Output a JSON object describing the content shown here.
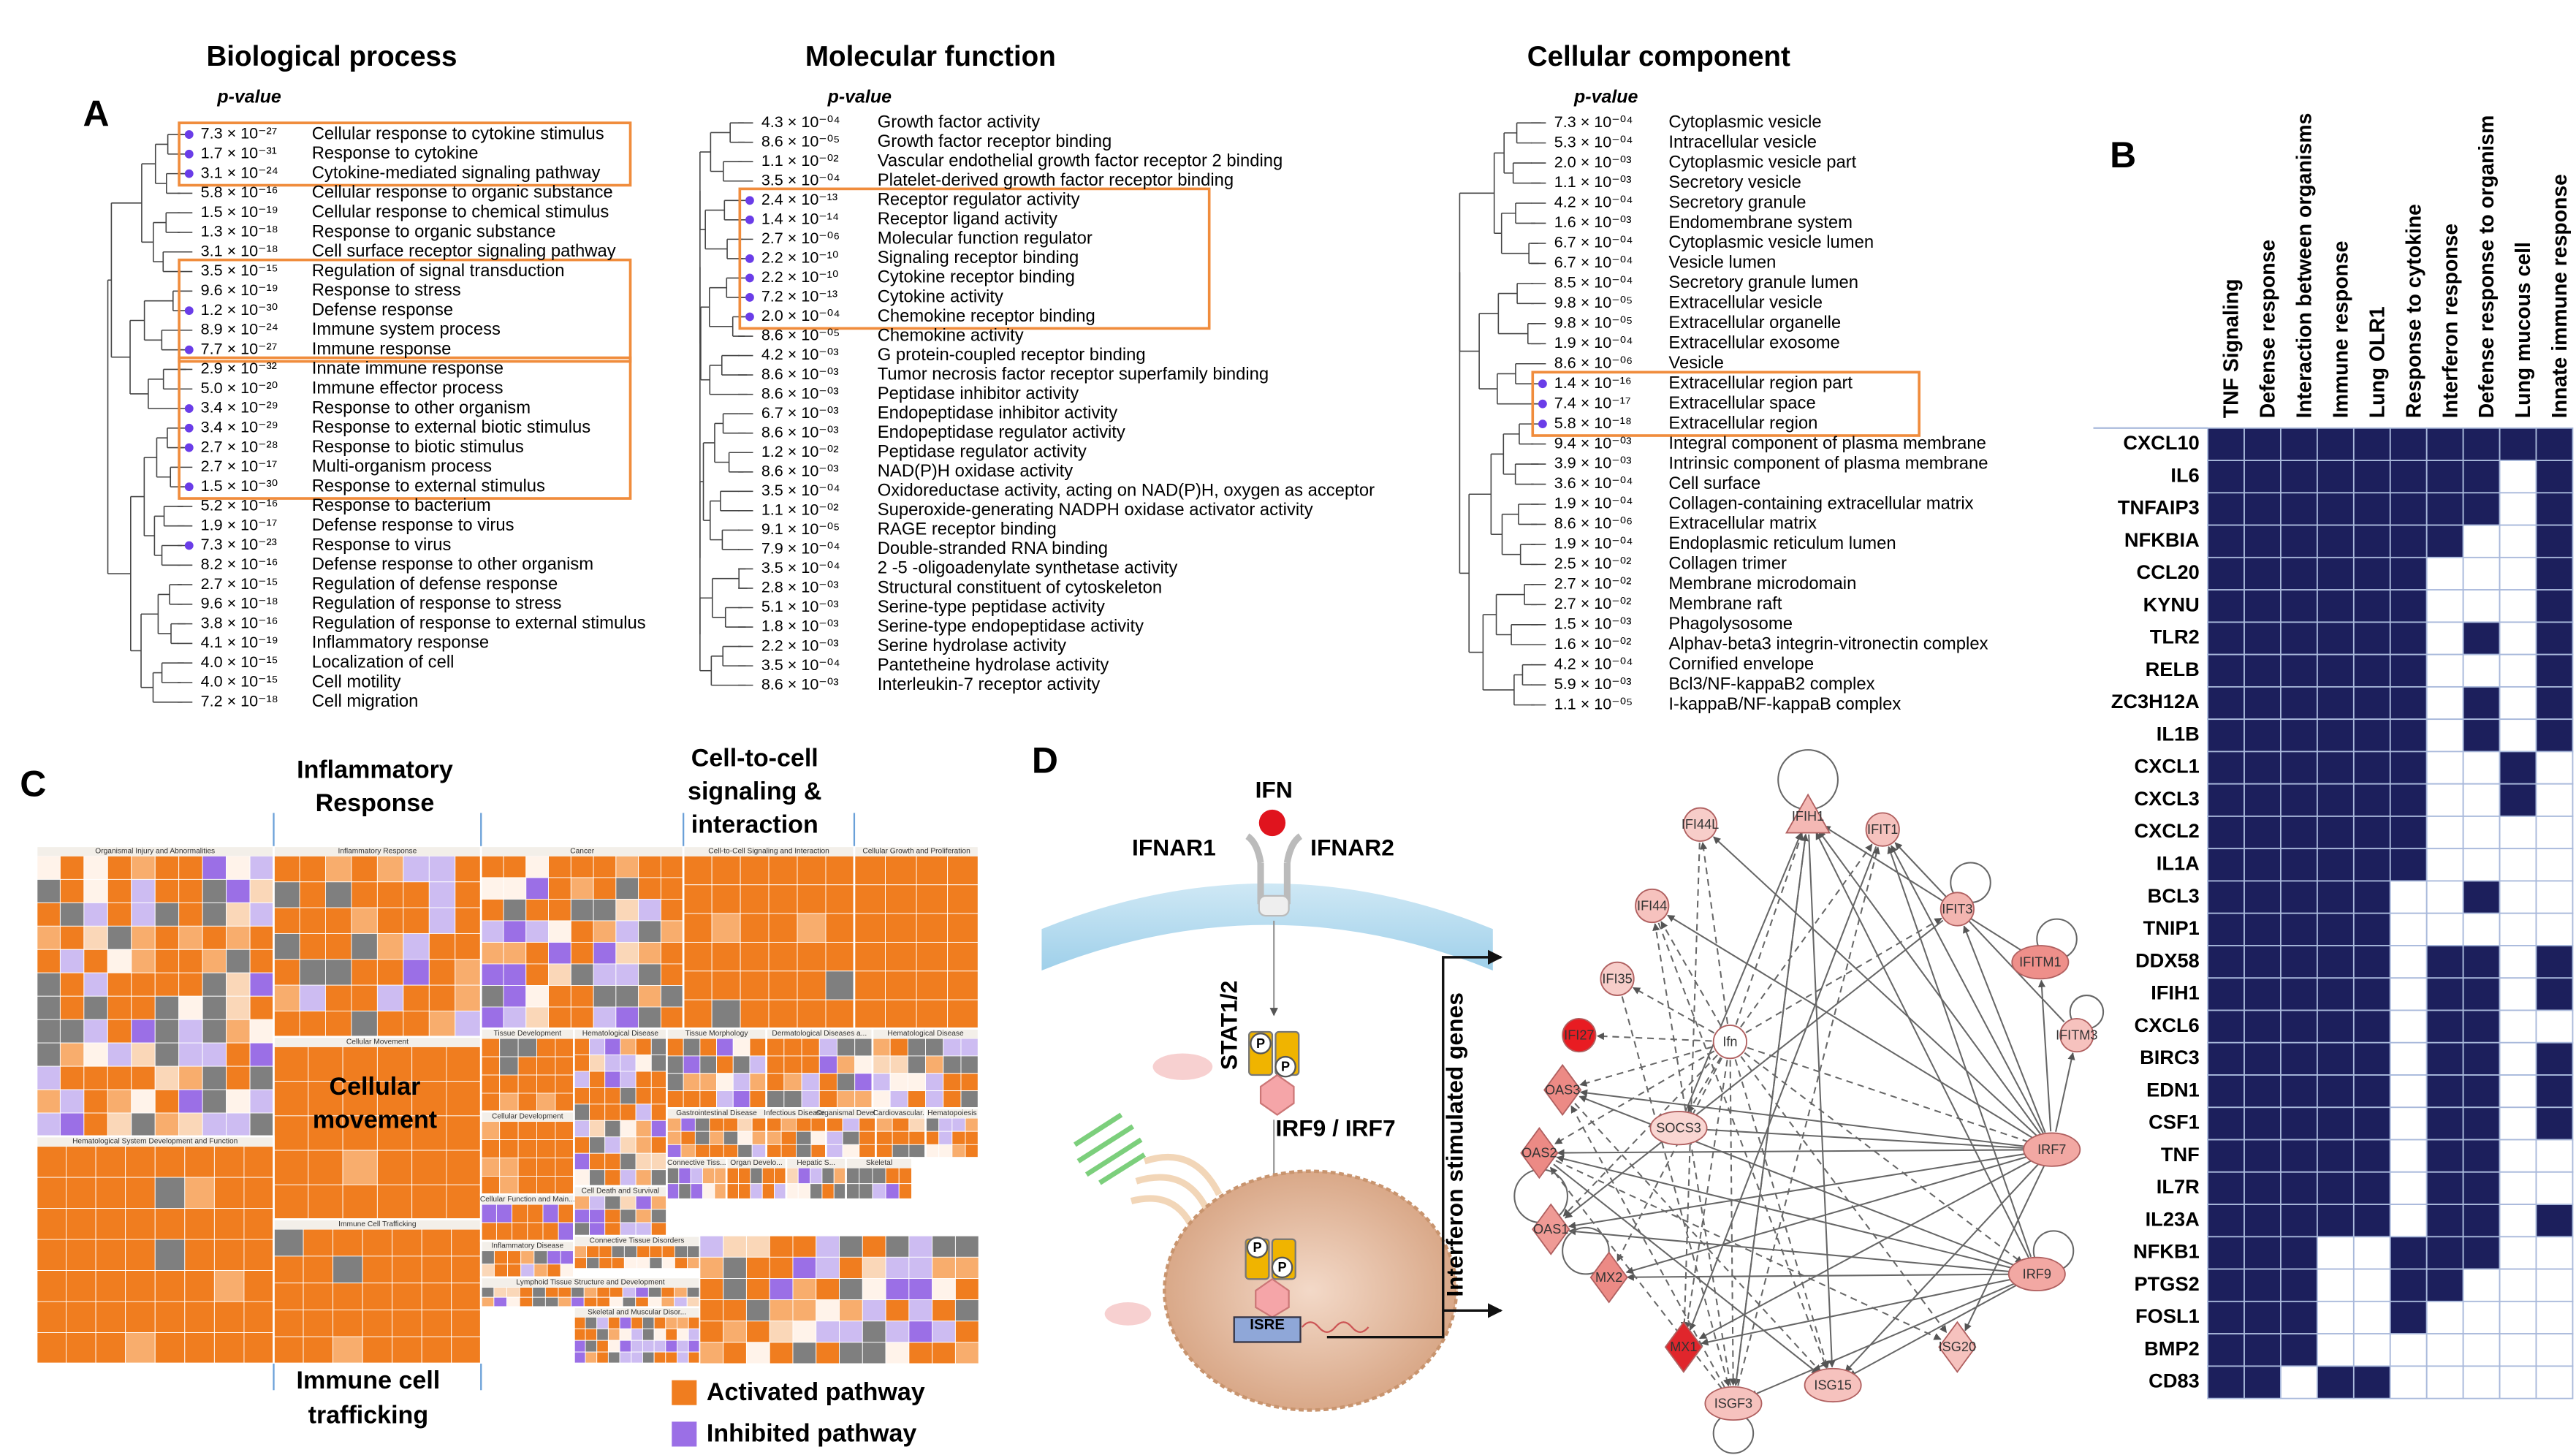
{
  "panel_a": {
    "label": "A",
    "ontologies": [
      {
        "title": "Biological process",
        "header": "p-value",
        "terms": [
          {
            "p": "7.3 × 10⁻²⁷",
            "name": "Cellular response to cytokine stimulus"
          },
          {
            "p": "1.7 × 10⁻³¹",
            "name": "Response to cytokine"
          },
          {
            "p": "3.1 × 10⁻²⁴",
            "name": "Cytokine-mediated signaling pathway"
          },
          {
            "p": "5.8 × 10⁻¹⁶",
            "name": "Cellular response to organic substance"
          },
          {
            "p": "1.5 × 10⁻¹⁹",
            "name": "Cellular response to chemical stimulus"
          },
          {
            "p": "1.3 × 10⁻¹⁸",
            "name": "Response to organic substance"
          },
          {
            "p": "3.1 × 10⁻¹⁸",
            "name": "Cell surface receptor signaling pathway"
          },
          {
            "p": "3.5 × 10⁻¹⁵",
            "name": "Regulation of signal transduction"
          },
          {
            "p": "9.6 × 10⁻¹⁹",
            "name": "Response to stress"
          },
          {
            "p": "1.2 × 10⁻³⁰",
            "name": "Defense response"
          },
          {
            "p": "8.9 × 10⁻²⁴",
            "name": "Immune system process"
          },
          {
            "p": "7.7 × 10⁻²⁷",
            "name": "Immune response"
          },
          {
            "p": "2.9 × 10⁻³²",
            "name": "Innate immune response"
          },
          {
            "p": "5.0 × 10⁻²⁰",
            "name": "Immune effector process"
          },
          {
            "p": "3.4 × 10⁻²⁹",
            "name": "Response to other organism"
          },
          {
            "p": "3.4 × 10⁻²⁹",
            "name": "Response to external biotic stimulus"
          },
          {
            "p": "2.7 × 10⁻²⁸",
            "name": "Response to biotic stimulus"
          },
          {
            "p": "2.7 × 10⁻¹⁷",
            "name": "Multi-organism process"
          },
          {
            "p": "1.5 × 10⁻³⁰",
            "name": "Response to external stimulus"
          },
          {
            "p": "5.2 × 10⁻¹⁶",
            "name": "Response to bacterium"
          },
          {
            "p": "1.9 × 10⁻¹⁷",
            "name": "Defense response to virus"
          },
          {
            "p": "7.3 × 10⁻²³",
            "name": "Response to virus"
          },
          {
            "p": "8.2 × 10⁻¹⁶",
            "name": "Defense response to other organism"
          },
          {
            "p": "2.7 × 10⁻¹⁵",
            "name": "Regulation of defense response"
          },
          {
            "p": "9.6 × 10⁻¹⁸",
            "name": "Regulation of response to stress"
          },
          {
            "p": "3.8 × 10⁻¹⁶",
            "name": "Regulation of response to external stimulus"
          },
          {
            "p": "4.1 × 10⁻¹⁹",
            "name": "Inflammatory response"
          },
          {
            "p": "4.0 × 10⁻¹⁵",
            "name": "Localization of cell"
          },
          {
            "p": "4.0 × 10⁻¹⁵",
            "name": "Cell motility"
          },
          {
            "p": "7.2 × 10⁻¹⁸",
            "name": "Cell migration"
          }
        ]
      },
      {
        "title": "Molecular function",
        "header": "p-value",
        "terms": [
          {
            "p": "4.3 × 10⁻⁰⁴",
            "name": "Growth factor activity"
          },
          {
            "p": "8.6 × 10⁻⁰⁵",
            "name": "Growth factor receptor binding"
          },
          {
            "p": "1.1 × 10⁻⁰²",
            "name": "Vascular endothelial growth factor receptor 2 binding"
          },
          {
            "p": "3.5 × 10⁻⁰⁴",
            "name": "Platelet-derived growth factor receptor binding"
          },
          {
            "p": "2.4 × 10⁻¹³",
            "name": "Receptor regulator activity"
          },
          {
            "p": "1.4 × 10⁻¹⁴",
            "name": "Receptor ligand activity"
          },
          {
            "p": "2.7 × 10⁻⁰⁶",
            "name": "Molecular function regulator"
          },
          {
            "p": "2.2 × 10⁻¹⁰",
            "name": "Signaling receptor binding"
          },
          {
            "p": "2.2 × 10⁻¹⁰",
            "name": "Cytokine receptor binding"
          },
          {
            "p": "7.2 × 10⁻¹³",
            "name": "Cytokine activity"
          },
          {
            "p": "2.0 × 10⁻⁰⁴",
            "name": "Chemokine receptor binding"
          },
          {
            "p": "8.6 × 10⁻⁰⁵",
            "name": "Chemokine activity"
          },
          {
            "p": "4.2 × 10⁻⁰³",
            "name": "G protein-coupled receptor binding"
          },
          {
            "p": "8.6 × 10⁻⁰³",
            "name": "Tumor necrosis factor receptor superfamily binding"
          },
          {
            "p": "8.6 × 10⁻⁰³",
            "name": "Peptidase inhibitor activity"
          },
          {
            "p": "6.7 × 10⁻⁰³",
            "name": "Endopeptidase inhibitor activity"
          },
          {
            "p": "8.6 × 10⁻⁰³",
            "name": "Endopeptidase regulator activity"
          },
          {
            "p": "1.2 × 10⁻⁰²",
            "name": "Peptidase regulator activity"
          },
          {
            "p": "8.6 × 10⁻⁰³",
            "name": "NAD(P)H oxidase activity"
          },
          {
            "p": "3.5 × 10⁻⁰⁴",
            "name": "Oxidoreductase activity, acting on NAD(P)H, oxygen as acceptor"
          },
          {
            "p": "1.1 × 10⁻⁰²",
            "name": "Superoxide-generating NADPH oxidase activator activity"
          },
          {
            "p": "9.1 × 10⁻⁰⁵",
            "name": "RAGE receptor binding"
          },
          {
            "p": "7.9 × 10⁻⁰⁴",
            "name": "Double-stranded RNA binding"
          },
          {
            "p": "3.5 × 10⁻⁰⁴",
            "name": "2 -5 -oligoadenylate synthetase activity"
          },
          {
            "p": "2.8 × 10⁻⁰³",
            "name": "Structural constituent of cytoskeleton"
          },
          {
            "p": "5.1 × 10⁻⁰³",
            "name": "Serine-type peptidase activity"
          },
          {
            "p": "1.8 × 10⁻⁰³",
            "name": "Serine-type endopeptidase activity"
          },
          {
            "p": "2.2 × 10⁻⁰³",
            "name": "Serine hydrolase activity"
          },
          {
            "p": "3.5 × 10⁻⁰⁴",
            "name": "Pantetheine hydrolase activity"
          },
          {
            "p": "8.6 × 10⁻⁰³",
            "name": "Interleukin-7 receptor activity"
          }
        ]
      },
      {
        "title": "Cellular component",
        "header": "p-value",
        "terms": [
          {
            "p": "7.3 × 10⁻⁰⁴",
            "name": "Cytoplasmic vesicle"
          },
          {
            "p": "5.3 × 10⁻⁰⁴",
            "name": "Intracellular vesicle"
          },
          {
            "p": "2.0 × 10⁻⁰³",
            "name": "Cytoplasmic vesicle part"
          },
          {
            "p": "1.1 × 10⁻⁰³",
            "name": "Secretory vesicle"
          },
          {
            "p": "4.2 × 10⁻⁰⁴",
            "name": "Secretory granule"
          },
          {
            "p": "1.6 × 10⁻⁰³",
            "name": "Endomembrane system"
          },
          {
            "p": "6.7 × 10⁻⁰⁴",
            "name": "Cytoplasmic vesicle lumen"
          },
          {
            "p": "6.7 × 10⁻⁰⁴",
            "name": "Vesicle lumen"
          },
          {
            "p": "8.5 × 10⁻⁰⁴",
            "name": "Secretory granule lumen"
          },
          {
            "p": "9.8 × 10⁻⁰⁵",
            "name": "Extracellular vesicle"
          },
          {
            "p": "9.8 × 10⁻⁰⁵",
            "name": "Extracellular organelle"
          },
          {
            "p": "1.9 × 10⁻⁰⁴",
            "name": "Extracellular exosome"
          },
          {
            "p": "8.6 × 10⁻⁰⁶",
            "name": "Vesicle"
          },
          {
            "p": "1.4 × 10⁻¹⁶",
            "name": "Extracellular region part"
          },
          {
            "p": "7.4 × 10⁻¹⁷",
            "name": "Extracellular space"
          },
          {
            "p": "5.8 × 10⁻¹⁸",
            "name": "Extracellular region"
          },
          {
            "p": "9.4 × 10⁻⁰³",
            "name": "Integral component of plasma membrane"
          },
          {
            "p": "3.9 × 10⁻⁰³",
            "name": "Intrinsic component of plasma membrane"
          },
          {
            "p": "3.6 × 10⁻⁰⁴",
            "name": "Cell surface"
          },
          {
            "p": "1.9 × 10⁻⁰⁴",
            "name": "Collagen-containing extracellular matrix"
          },
          {
            "p": "8.6 × 10⁻⁰⁶",
            "name": "Extracellular matrix"
          },
          {
            "p": "1.9 × 10⁻⁰⁴",
            "name": "Endoplasmic reticulum lumen"
          },
          {
            "p": "2.5 × 10⁻⁰²",
            "name": "Collagen trimer"
          },
          {
            "p": "2.7 × 10⁻⁰²",
            "name": "Membrane microdomain"
          },
          {
            "p": "2.7 × 10⁻⁰²",
            "name": "Membrane raft"
          },
          {
            "p": "1.5 × 10⁻⁰³",
            "name": "Phagolysosome"
          },
          {
            "p": "1.6 × 10⁻⁰²",
            "name": "Alphav-beta3 integrin-vitronectin complex"
          },
          {
            "p": "4.2 × 10⁻⁰⁴",
            "name": "Cornified envelope"
          },
          {
            "p": "5.9 × 10⁻⁰³",
            "name": "Bcl3/NF-kappaB2 complex"
          },
          {
            "p": "1.1 × 10⁻⁰⁵",
            "name": "I-kappaB/NF-kappaB complex"
          }
        ]
      }
    ]
  },
  "panel_b": {
    "label": "B",
    "columns": [
      "TNF Signaling",
      "Defense response",
      "Interaction between organisms",
      "Immune response",
      "Lung OLR1",
      "Response to cytokine",
      "Interferon response",
      "Defense response to organism",
      "Lung mucous cell",
      "Innate immune response"
    ],
    "genes": [
      "CXCL10",
      "IL6",
      "TNFAIP3",
      "NFKBIA",
      "CCL20",
      "KYNU",
      "TLR2",
      "RELB",
      "ZC3H12A",
      "IL1B",
      "CXCL1",
      "CXCL3",
      "CXCL2",
      "IL1A",
      "BCL3",
      "TNIP1",
      "DDX58",
      "IFIH1",
      "CXCL6",
      "BIRC3",
      "EDN1",
      "CSF1",
      "TNF",
      "IL7R",
      "IL23A",
      "NFKB1",
      "PTGS2",
      "FOSL1",
      "BMP2",
      "CD83"
    ],
    "matrix": [
      [
        1,
        1,
        1,
        1,
        1,
        1,
        1,
        1,
        1,
        1
      ],
      [
        1,
        1,
        1,
        1,
        1,
        1,
        1,
        1,
        0,
        1
      ],
      [
        1,
        1,
        1,
        1,
        1,
        1,
        1,
        1,
        0,
        1
      ],
      [
        1,
        1,
        1,
        1,
        1,
        1,
        1,
        0,
        0,
        1
      ],
      [
        1,
        1,
        1,
        1,
        1,
        1,
        0,
        0,
        0,
        1
      ],
      [
        1,
        1,
        1,
        1,
        1,
        1,
        0,
        0,
        0,
        1
      ],
      [
        1,
        1,
        1,
        1,
        1,
        1,
        0,
        1,
        0,
        1
      ],
      [
        1,
        1,
        1,
        1,
        1,
        1,
        0,
        0,
        0,
        1
      ],
      [
        1,
        1,
        1,
        1,
        1,
        1,
        0,
        1,
        0,
        1
      ],
      [
        1,
        1,
        1,
        1,
        1,
        1,
        0,
        1,
        0,
        1
      ],
      [
        1,
        1,
        1,
        1,
        1,
        1,
        0,
        0,
        1,
        0
      ],
      [
        1,
        1,
        1,
        1,
        1,
        1,
        0,
        0,
        1,
        0
      ],
      [
        1,
        1,
        1,
        1,
        1,
        1,
        0,
        0,
        0,
        0
      ],
      [
        1,
        1,
        1,
        1,
        1,
        1,
        0,
        0,
        0,
        0
      ],
      [
        1,
        1,
        1,
        1,
        1,
        0,
        0,
        1,
        0,
        0
      ],
      [
        1,
        1,
        1,
        1,
        1,
        0,
        0,
        0,
        0,
        0
      ],
      [
        1,
        1,
        1,
        1,
        1,
        0,
        1,
        1,
        0,
        1
      ],
      [
        1,
        1,
        1,
        1,
        1,
        0,
        1,
        1,
        0,
        1
      ],
      [
        1,
        1,
        1,
        1,
        1,
        0,
        1,
        1,
        0,
        0
      ],
      [
        1,
        1,
        1,
        1,
        1,
        0,
        1,
        1,
        0,
        1
      ],
      [
        1,
        1,
        1,
        1,
        1,
        0,
        1,
        1,
        0,
        1
      ],
      [
        1,
        1,
        1,
        1,
        1,
        0,
        1,
        1,
        0,
        1
      ],
      [
        1,
        1,
        1,
        1,
        1,
        0,
        1,
        1,
        0,
        0
      ],
      [
        1,
        1,
        1,
        1,
        1,
        0,
        1,
        1,
        0,
        0
      ],
      [
        1,
        1,
        1,
        1,
        1,
        0,
        1,
        1,
        0,
        1
      ],
      [
        1,
        1,
        1,
        0,
        0,
        1,
        1,
        1,
        0,
        0
      ],
      [
        1,
        1,
        1,
        0,
        0,
        1,
        1,
        0,
        0,
        0
      ],
      [
        1,
        1,
        1,
        0,
        0,
        1,
        0,
        0,
        0,
        0
      ],
      [
        1,
        1,
        1,
        0,
        0,
        0,
        0,
        0,
        0,
        0
      ],
      [
        1,
        1,
        0,
        1,
        1,
        0,
        0,
        0,
        0,
        0
      ]
    ],
    "filled_color": "#1c1f5c"
  },
  "panel_c": {
    "label": "C",
    "callouts": [
      {
        "lines": [
          "Inflammatory",
          "Response"
        ]
      },
      {
        "lines": [
          "Cell-to-cell",
          "signaling &",
          "interaction"
        ]
      },
      {
        "lines": [
          "Cellular",
          "movement"
        ]
      },
      {
        "lines": [
          "Immune cell",
          "trafficking"
        ]
      }
    ],
    "sections": [
      "Organismal Injury and Abnormalities",
      "Inflammatory Response",
      "Cancer",
      "Cell-to-Cell Signaling and Interaction",
      "Cellular Growth and Proliferation",
      "Cellular Movement",
      "Hematological System Development and Function",
      "Immune Cell Trafficking",
      "Tissue Development",
      "Hematological Disease",
      "Tissue Morphology",
      "Dermatological Diseases a...",
      "Hematological Disease",
      "Cellular Development",
      "Gastrointestinal Disease",
      "Infectious Diseases",
      "Organismal Develo...",
      "Cardiovascular...",
      "Hematopoiesis",
      "Cell Death and Survival",
      "Cellular Function and Main...",
      "Connective Tiss...",
      "Organ Develo...",
      "Hepatic S...",
      "Skeletal",
      "Inflammatory Disease",
      "Connective Tissue Disorders",
      "Lymphoid Tissue Structure and Development",
      "Skeletal and Muscular Disor..."
    ],
    "legend": [
      {
        "name": "Activated pathway",
        "color": "#f07d1f"
      },
      {
        "name": "Inhibited pathway",
        "color": "#9b6fe6"
      }
    ]
  },
  "panel_d": {
    "label": "D",
    "ligand": "IFN",
    "receptors": [
      "IFNAR1",
      "IFNAR2"
    ],
    "transducer": "STAT1/2",
    "phospho": "P",
    "factors": "IRF9 / IRF7",
    "element": "ISRE",
    "output": "Interferon stimulated genes",
    "nodes": [
      "IFIH1",
      "IFIT1",
      "IFI44L",
      "IFI44",
      "IFIT3",
      "IFI35",
      "IFITM1",
      "IFI27",
      "Ifn",
      "IFITM3",
      "OAS3",
      "SOCS3",
      "OAS2",
      "IRF7",
      "OAS1",
      "IRF9",
      "MX2",
      "MX1",
      "ISGF3",
      "ISG15",
      "ISG20"
    ]
  }
}
